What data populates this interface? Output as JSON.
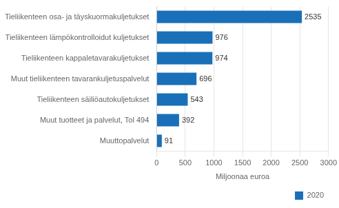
{
  "chart_data": {
    "type": "bar",
    "orientation": "horizontal",
    "categories": [
      "Muuttopalvelut",
      "Muut tuotteet ja palvelut, Tol 494",
      "Tieliikenteen säiliöautokuljetukset",
      "Muut tieliikenteen tavarankuljetuspalvelut",
      "Tieliikenteen kappaletavarakuljetukset",
      "Tieliikenteen lämpökontrolloidut kuljetukset",
      "Tieliikenteen osa- ja täyskuormakuljetukset"
    ],
    "series": [
      {
        "name": "2020",
        "color": "#1a70b8",
        "values": [
          91,
          392,
          543,
          696,
          974,
          976,
          2535
        ]
      }
    ],
    "xlabel": "Miljoonaa euroa",
    "xlim": [
      0,
      3000
    ],
    "xticks": [
      0,
      500,
      1000,
      1500,
      2000,
      2500,
      3000
    ],
    "grid": true,
    "legend": "lower right",
    "data_labels": true
  }
}
